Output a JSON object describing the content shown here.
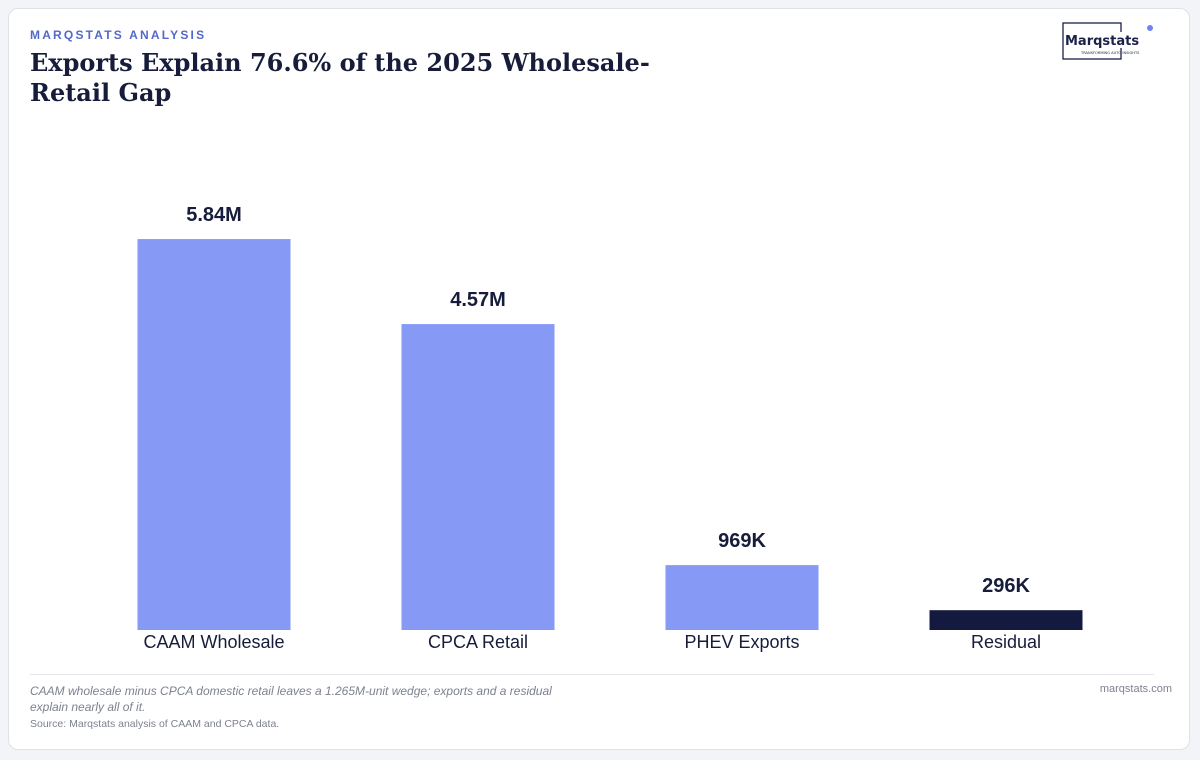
{
  "header": {
    "eyebrow": "MARQSTATS ANALYSIS",
    "title": "Exports Explain 76.6% of the 2025 Wholesale-Retail Gap"
  },
  "logo": {
    "wordmark": "Marqstats",
    "tagline": "TRANSFORMING AUTO INSIGHTS"
  },
  "chart_data": {
    "type": "bar",
    "title": "Exports Explain 76.6% of the 2025 Wholesale-Retail Gap",
    "categories": [
      "CAAM Wholesale",
      "CPCA Retail",
      "PHEV Exports",
      "Residual"
    ],
    "values": [
      5.84,
      4.57,
      0.969,
      0.296
    ],
    "value_unit": "million units",
    "data_labels": [
      "5.84M",
      "4.57M",
      "969K",
      "296K"
    ],
    "colors": [
      "#8599f5",
      "#8599f5",
      "#8599f5",
      "#141a3f"
    ],
    "ylim": [
      0,
      7.32
    ],
    "grid": false,
    "legend": "none"
  },
  "footer": {
    "note": "CAAM wholesale minus CPCA domestic retail leaves a 1.265M-unit wedge; exports and a residual explain nearly all of it.",
    "source": "Source: Marqstats analysis of CAAM and CPCA data.",
    "site": "marqstats.com"
  }
}
